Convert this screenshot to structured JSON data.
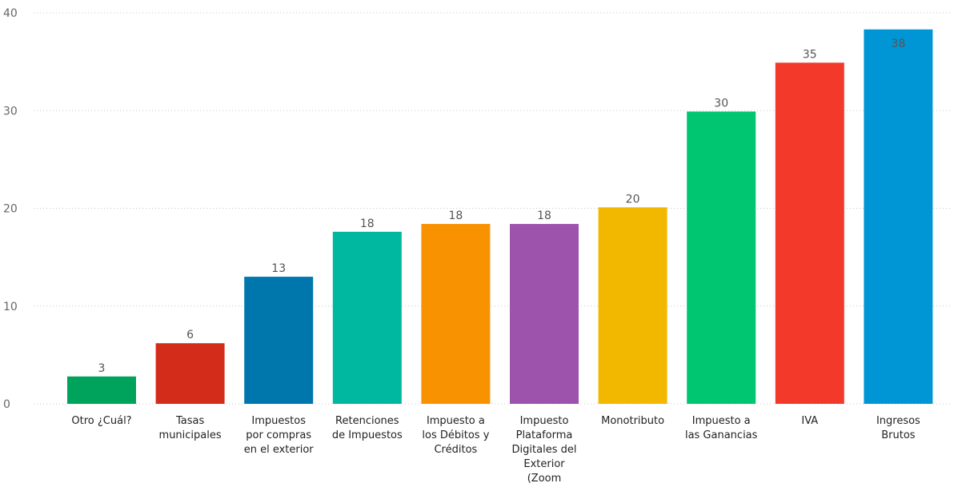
{
  "chart_data": {
    "type": "bar",
    "title": "",
    "xlabel": "",
    "ylabel": "",
    "ylim": [
      0,
      40
    ],
    "y_ticks": [
      0,
      10,
      20,
      30,
      40
    ],
    "grid": true,
    "categories": [
      [
        "Otro ¿Cuál?"
      ],
      [
        "Tasas",
        "municipales"
      ],
      [
        "Impuestos",
        "por compras",
        "en el exterior"
      ],
      [
        "Retenciones",
        "de Impuestos"
      ],
      [
        "Impuesto a",
        "los Débitos y",
        "Créditos"
      ],
      [
        "Impuesto",
        "Plataforma",
        "Digitales del",
        "Exterior",
        "(Zoom"
      ],
      [
        "Monotributo"
      ],
      [
        "Impuesto a",
        "las Ganancias"
      ],
      [
        "IVA"
      ],
      [
        "Ingresos",
        "Brutos"
      ]
    ],
    "values": [
      2.8,
      6.2,
      13.0,
      17.6,
      18.4,
      18.4,
      20.1,
      29.9,
      34.9,
      38.3
    ],
    "value_labels": [
      "3",
      "6",
      "13",
      "18",
      "18",
      "18",
      "20",
      "30",
      "35",
      "38"
    ],
    "colors": [
      "#00a35c",
      "#d42c1a",
      "#0077ac",
      "#00b89f",
      "#f89200",
      "#9d52ab",
      "#f2b800",
      "#00c672",
      "#f33a2a",
      "#0096d6"
    ],
    "label_inside_last": true
  }
}
